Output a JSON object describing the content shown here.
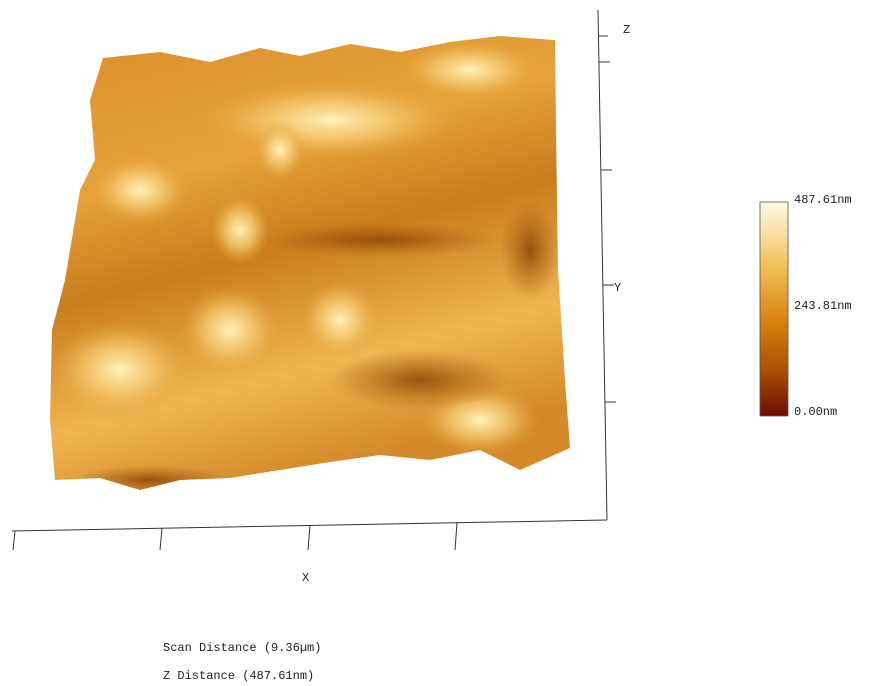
{
  "axes": {
    "z": "Z",
    "y": "Y",
    "x": "X"
  },
  "colorbar": {
    "max": "487.61nm",
    "mid": "243.81nm",
    "min": "0.00nm"
  },
  "footer": {
    "scan_distance": "Scan Distance (9.36µm)",
    "z_distance": "Z Distance (487.61nm)"
  }
}
